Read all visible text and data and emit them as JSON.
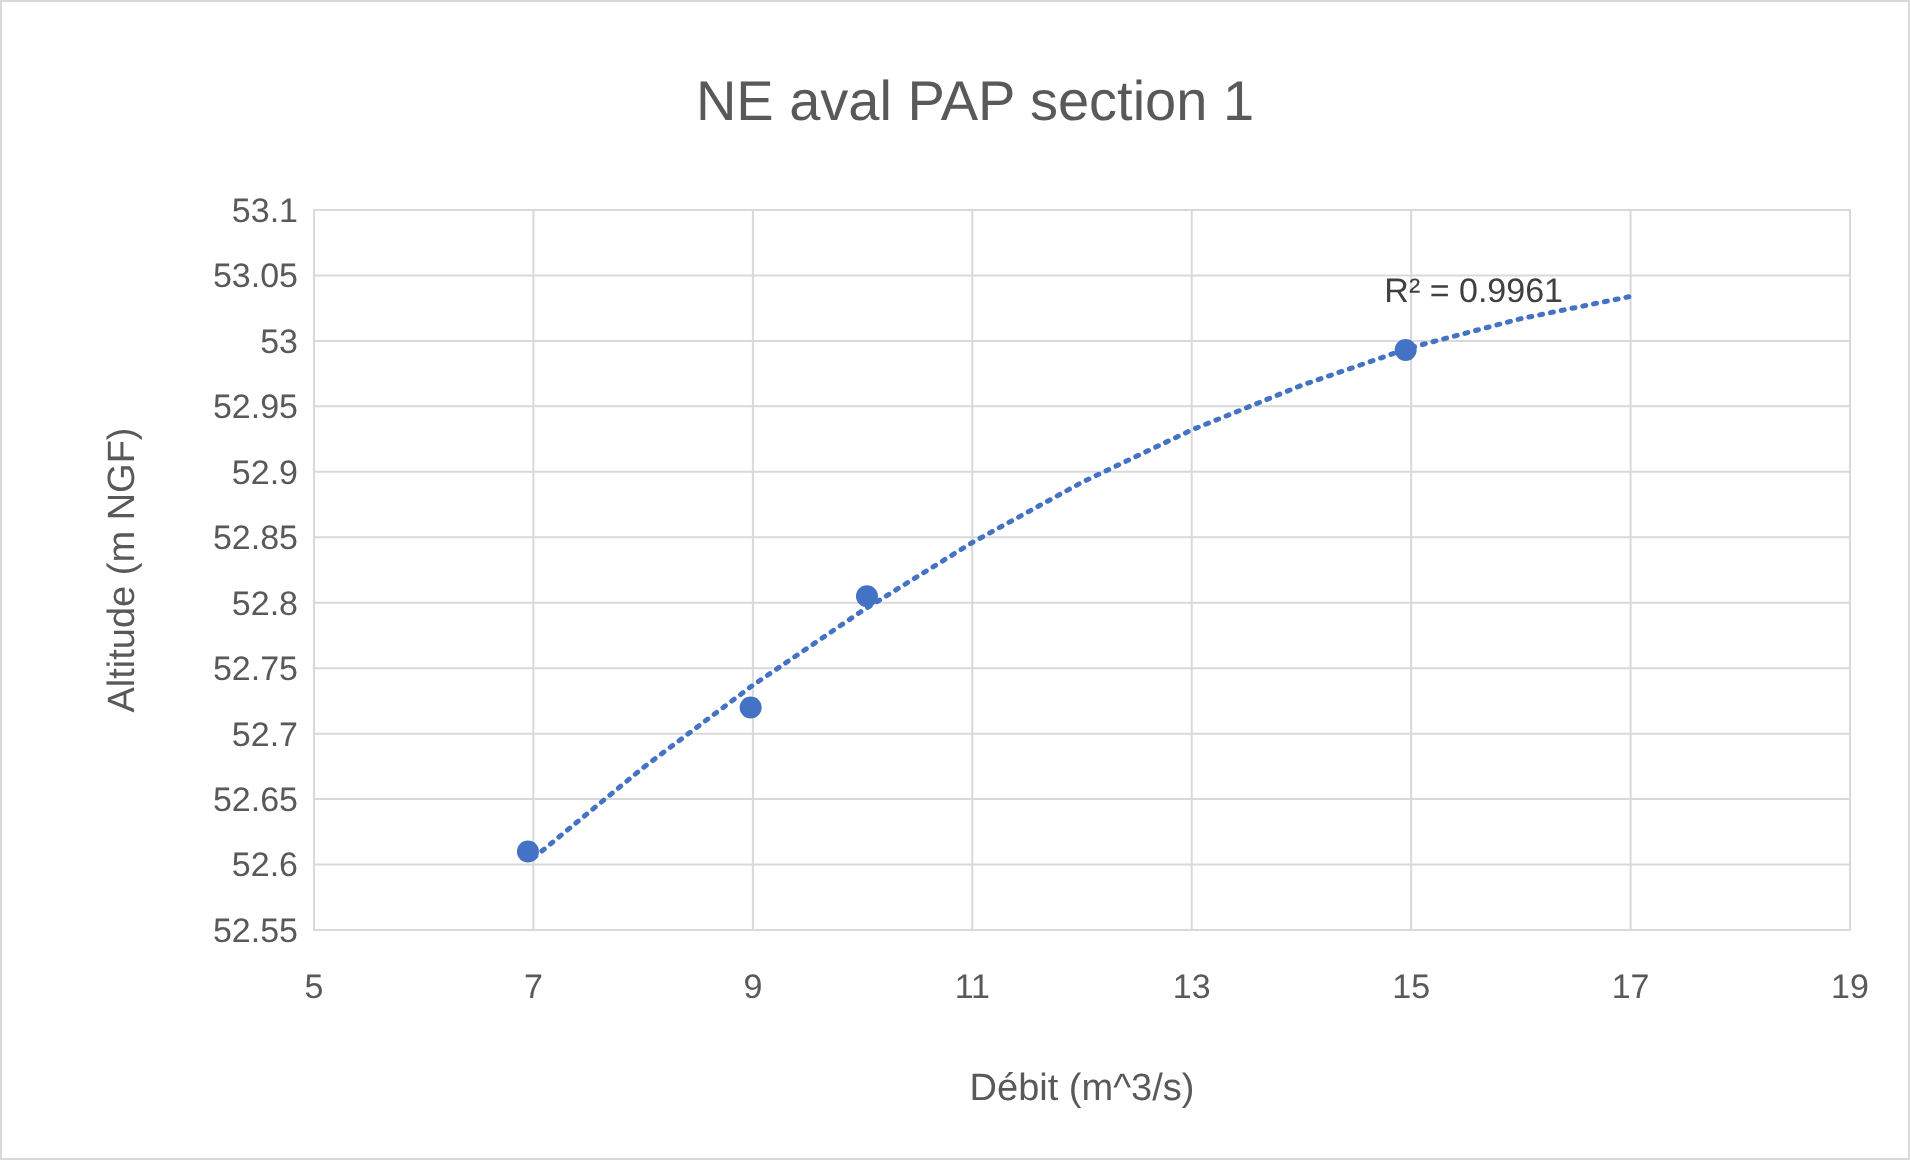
{
  "chart_data": {
    "type": "scatter",
    "title": "NE aval PAP section 1",
    "xlabel": "Débit (m^3/s)",
    "ylabel": "Altitude (m NGF)",
    "xlim": [
      5,
      19
    ],
    "xticks": [
      5,
      7,
      9,
      11,
      13,
      15,
      17,
      19
    ],
    "ylim": [
      52.55,
      53.1
    ],
    "yticks": [
      52.55,
      52.6,
      52.65,
      52.7,
      52.75,
      52.8,
      52.85,
      52.9,
      52.95,
      53,
      53.05,
      53.1
    ],
    "grid": true,
    "series": [
      {
        "color": "#4472c4",
        "marker": "circle",
        "x": [
          6.95,
          8.98,
          10.04,
          14.95
        ],
        "values": [
          52.61,
          52.72,
          52.805,
          52.993
        ]
      },
      {
        "type": "line",
        "color": "#4472c4",
        "marker": "none",
        "line_style": "dotted",
        "x": [
          7,
          8,
          9,
          10,
          11,
          12,
          13,
          14,
          15,
          16,
          17
        ],
        "values": [
          52.605,
          52.674,
          52.737,
          52.794,
          52.846,
          52.892,
          52.932,
          52.966,
          52.995,
          53.017,
          53.034
        ]
      }
    ],
    "annotations": [
      "R² = 0.9961"
    ]
  }
}
